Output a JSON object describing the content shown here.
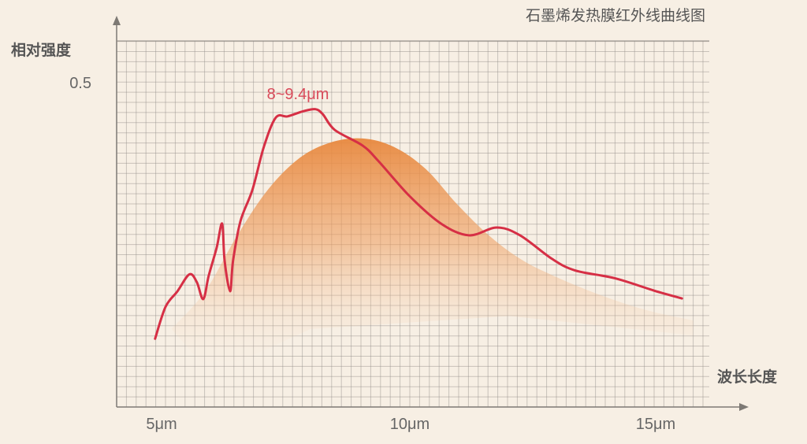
{
  "chart_data": {
    "type": "area",
    "title": "石墨烯发热膜红外线曲线图",
    "xlabel": "波长长度",
    "ylabel": "相对强度",
    "x_ticks": [
      "5μm",
      "10μm",
      "15μm"
    ],
    "x_tick_values": [
      5,
      10,
      15
    ],
    "y_ticks": [
      "0.5"
    ],
    "y_tick_values": [
      0.5
    ],
    "xlim": [
      4.1,
      15.7
    ],
    "ylim": [
      0,
      0.5
    ],
    "grid": true,
    "annotation": "8~9.4μm",
    "colors": {
      "line": "#d62f45",
      "area": "#e8883e",
      "background": "#f7efe4",
      "grid": "#8f8a84"
    },
    "series": [
      {
        "type": "line",
        "x": [
          4.87,
          5.08,
          5.32,
          5.56,
          5.71,
          5.84,
          5.95,
          6.11,
          6.22,
          6.27,
          6.38,
          6.44,
          6.59,
          6.83,
          7.06,
          7.3,
          7.54,
          7.86,
          8.1,
          8.25,
          8.49,
          9.05,
          9.37,
          10.0,
          10.63,
          11.19,
          11.75,
          12.22,
          12.86,
          13.33,
          14.13,
          14.92,
          15.48
        ],
        "y": [
          0.105,
          0.154,
          0.178,
          0.204,
          0.192,
          0.166,
          0.202,
          0.245,
          0.282,
          0.225,
          0.178,
          0.225,
          0.286,
          0.334,
          0.4,
          0.445,
          0.447,
          0.455,
          0.458,
          0.45,
          0.426,
          0.402,
          0.378,
          0.324,
          0.282,
          0.264,
          0.276,
          0.264,
          0.228,
          0.21,
          0.198,
          0.179,
          0.167
        ]
      },
      {
        "type": "area",
        "x": [
          5.87,
          6.51,
          7.14,
          7.78,
          8.41,
          9.05,
          9.68,
          10.32,
          10.95,
          11.59,
          12.22,
          12.86,
          13.81,
          14.76,
          15.71
        ],
        "y": [
          0.177,
          0.262,
          0.334,
          0.383,
          0.407,
          0.413,
          0.4,
          0.366,
          0.312,
          0.264,
          0.228,
          0.203,
          0.173,
          0.149,
          0.133
        ]
      }
    ]
  }
}
